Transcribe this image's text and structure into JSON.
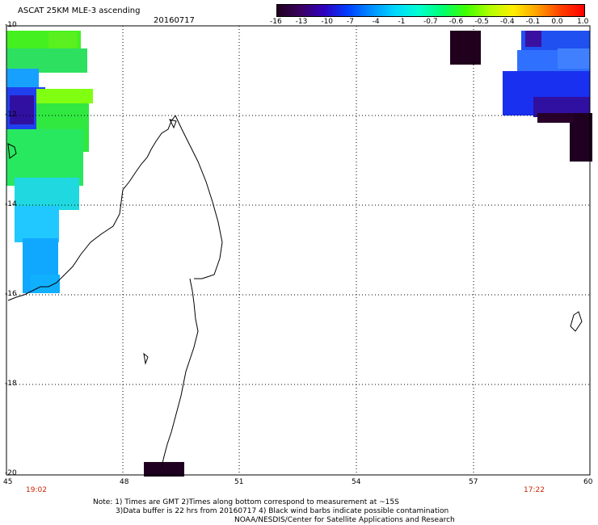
{
  "header": {
    "title": "ASCAT 25KM MLE-3 ascending",
    "date": "20160717"
  },
  "colorbar": {
    "labels": [
      "-16",
      "-13",
      "-10",
      "-7",
      "-4",
      "-1",
      "-0.7",
      "-0.6",
      "-0.5",
      "-0.4",
      "-0.1",
      "0.0",
      "1.0"
    ],
    "colors": [
      "#200020",
      "#3a0060",
      "#3000c0",
      "#0040ff",
      "#0090ff",
      "#00d8ff",
      "#00ffd0",
      "#00ff70",
      "#40ff00",
      "#b0ff00",
      "#ffee00",
      "#ffa000",
      "#ff4000",
      "#ff0000"
    ]
  },
  "map": {
    "x_ticks": [
      "45",
      "48",
      "51",
      "54",
      "57",
      "60"
    ],
    "y_ticks": [
      "-10",
      "-12",
      "-14",
      "-16",
      "-18",
      "-20"
    ],
    "lon_range": [
      45,
      60
    ],
    "lat_range": [
      -20,
      -10
    ],
    "times": {
      "left": "19:02",
      "right": "17:22"
    }
  },
  "notes": {
    "line1": "Note: 1) Times are GMT 2)Times along bottom correspond to measurement at ~15S",
    "line2": "3)Data buffer is 22 hrs from 20160717 4) Black wind barbs indicate possible contamination",
    "line3": "NOAA/NESDIS/Center for Satellite Applications and Research"
  }
}
